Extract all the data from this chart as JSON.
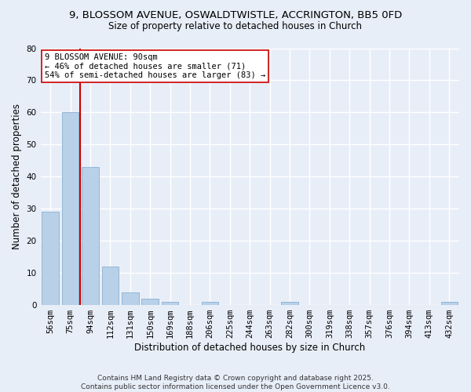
{
  "title1": "9, BLOSSOM AVENUE, OSWALDTWISTLE, ACCRINGTON, BB5 0FD",
  "title2": "Size of property relative to detached houses in Church",
  "xlabel": "Distribution of detached houses by size in Church",
  "ylabel": "Number of detached properties",
  "categories": [
    "56sqm",
    "75sqm",
    "94sqm",
    "112sqm",
    "131sqm",
    "150sqm",
    "169sqm",
    "188sqm",
    "206sqm",
    "225sqm",
    "244sqm",
    "263sqm",
    "282sqm",
    "300sqm",
    "319sqm",
    "338sqm",
    "357sqm",
    "376sqm",
    "394sqm",
    "413sqm",
    "432sqm"
  ],
  "values": [
    29,
    60,
    43,
    12,
    4,
    2,
    1,
    0,
    1,
    0,
    0,
    0,
    1,
    0,
    0,
    0,
    0,
    0,
    0,
    0,
    1
  ],
  "bar_color": "#b8d0e8",
  "bar_edge_color": "#8ab0d0",
  "vline_color": "#cc0000",
  "annotation_text": "9 BLOSSOM AVENUE: 90sqm\n← 46% of detached houses are smaller (71)\n54% of semi-detached houses are larger (83) →",
  "annotation_box_color": "#ffffff",
  "annotation_box_edge": "#cc0000",
  "ylim": [
    0,
    80
  ],
  "yticks": [
    0,
    10,
    20,
    30,
    40,
    50,
    60,
    70,
    80
  ],
  "footer1": "Contains HM Land Registry data © Crown copyright and database right 2025.",
  "footer2": "Contains public sector information licensed under the Open Government Licence v3.0.",
  "bg_color": "#e8eef8",
  "plot_bg_color": "#e8eef8",
  "grid_color": "#ffffff",
  "title1_fontsize": 9.5,
  "title2_fontsize": 8.5,
  "xlabel_fontsize": 8.5,
  "ylabel_fontsize": 8.5,
  "tick_fontsize": 7.5,
  "annot_fontsize": 7.5,
  "footer_fontsize": 6.5
}
